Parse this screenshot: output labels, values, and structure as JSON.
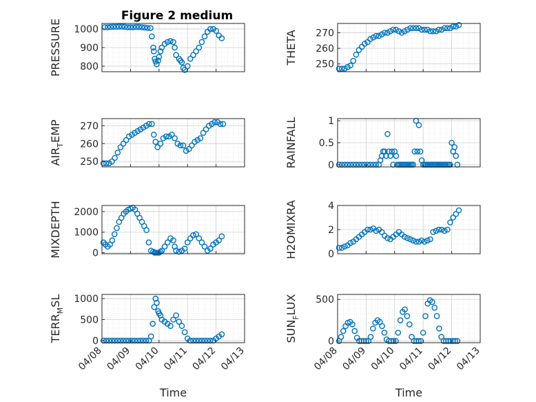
{
  "figure": {
    "title": "Figure 2 medium",
    "xlabel": "Time",
    "marker_color": "#0072BD",
    "xtick_labels": [
      "04/08",
      "04/09",
      "04/10",
      "04/11",
      "04/12",
      "04/13"
    ],
    "x_date_range": [
      "2023-04-08",
      "2023-04-13"
    ]
  },
  "chart_data": [
    {
      "type": "scatter",
      "ylabel_main": "PRESSURE",
      "ylabel_sub": "",
      "ylim": [
        770,
        1030
      ],
      "yticks": [
        800,
        900,
        1000
      ],
      "xlim_days": [
        0,
        5
      ],
      "grid": true,
      "x": [
        0.1,
        0.2,
        0.3,
        0.4,
        0.5,
        0.6,
        0.7,
        0.8,
        0.9,
        1.0,
        1.1,
        1.2,
        1.3,
        1.4,
        1.5,
        1.6,
        1.7,
        1.75,
        1.8,
        1.82,
        1.85,
        1.88,
        1.92,
        1.97,
        2.0,
        2.05,
        2.1,
        2.2,
        2.3,
        2.4,
        2.5,
        2.55,
        2.6,
        2.7,
        2.75,
        2.8,
        2.85,
        2.9,
        3.0,
        3.1,
        3.2,
        3.3,
        3.4,
        3.5,
        3.6,
        3.7,
        3.8,
        3.9,
        4.0,
        4.1,
        4.2
      ],
      "y": [
        1010,
        1010,
        1011,
        1012,
        1012,
        1013,
        1013,
        1012,
        1010,
        1010,
        1010,
        1011,
        1011,
        1010,
        1008,
        1006,
        1005,
        960,
        900,
        880,
        840,
        825,
        810,
        830,
        850,
        880,
        900,
        920,
        930,
        935,
        930,
        900,
        860,
        840,
        830,
        820,
        790,
        780,
        800,
        840,
        860,
        880,
        900,
        930,
        960,
        985,
        1000,
        1000,
        990,
        965,
        950
      ]
    },
    {
      "type": "scatter",
      "ylabel_main": "THETA",
      "ylabel_sub": "",
      "ylim": [
        245,
        276
      ],
      "yticks": [
        250,
        260,
        270
      ],
      "xlim_days": [
        0,
        5
      ],
      "grid": true,
      "x": [
        0.05,
        0.15,
        0.25,
        0.35,
        0.45,
        0.55,
        0.65,
        0.75,
        0.85,
        0.95,
        1.05,
        1.15,
        1.25,
        1.35,
        1.45,
        1.55,
        1.65,
        1.75,
        1.85,
        1.95,
        2.05,
        2.15,
        2.25,
        2.35,
        2.45,
        2.55,
        2.65,
        2.75,
        2.85,
        2.95,
        3.05,
        3.15,
        3.25,
        3.35,
        3.45,
        3.55,
        3.65,
        3.75,
        3.85,
        3.95,
        4.05,
        4.15,
        4.25
      ],
      "y": [
        247,
        247,
        247,
        248,
        249,
        252,
        256,
        259,
        261,
        263,
        264,
        266,
        267,
        268,
        268,
        269,
        270,
        270,
        271,
        272,
        272,
        271,
        270,
        271,
        272,
        273,
        273,
        273,
        273,
        272,
        272,
        272,
        271,
        271,
        271,
        272,
        272,
        273,
        273,
        273,
        274,
        274,
        275
      ]
    },
    {
      "type": "scatter",
      "ylabel_main": "AIR",
      "ylabel_sub": "T",
      "ylabel_rest": "EMP",
      "ylim": [
        247,
        274
      ],
      "yticks": [
        250,
        260,
        270
      ],
      "xlim_days": [
        0,
        5
      ],
      "grid": true,
      "x": [
        0.05,
        0.15,
        0.25,
        0.35,
        0.45,
        0.55,
        0.65,
        0.75,
        0.85,
        0.95,
        1.05,
        1.15,
        1.25,
        1.35,
        1.45,
        1.55,
        1.65,
        1.75,
        1.82,
        1.88,
        1.95,
        2.05,
        2.15,
        2.25,
        2.35,
        2.45,
        2.55,
        2.65,
        2.75,
        2.85,
        2.95,
        3.05,
        3.15,
        3.25,
        3.35,
        3.45,
        3.55,
        3.65,
        3.75,
        3.85,
        3.95,
        4.05,
        4.15,
        4.25
      ],
      "y": [
        249,
        249,
        249,
        250,
        252,
        255,
        258,
        260,
        262,
        264,
        265,
        266,
        267,
        268,
        269,
        270,
        271,
        271,
        265,
        261,
        258,
        260,
        263,
        264,
        264,
        265,
        263,
        260,
        259,
        259,
        256,
        257,
        259,
        261,
        262,
        263,
        266,
        268,
        270,
        271,
        272,
        272,
        271,
        271
      ]
    },
    {
      "type": "scatter",
      "ylabel_main": "RAINFALL",
      "ylabel_sub": "",
      "ylim": [
        -0.05,
        1.05
      ],
      "yticks": [
        0,
        0.5,
        1
      ],
      "xlim_days": [
        0,
        5
      ],
      "grid": true,
      "x": [
        0.05,
        0.15,
        0.25,
        0.35,
        0.45,
        0.55,
        0.65,
        0.75,
        0.85,
        0.95,
        1.05,
        1.15,
        1.25,
        1.35,
        1.45,
        1.5,
        1.55,
        1.6,
        1.65,
        1.7,
        1.75,
        1.8,
        1.85,
        1.9,
        1.95,
        2.0,
        2.05,
        2.1,
        2.15,
        2.2,
        2.25,
        2.3,
        2.35,
        2.4,
        2.45,
        2.5,
        2.55,
        2.6,
        2.65,
        2.7,
        2.75,
        2.8,
        2.85,
        2.9,
        2.95,
        3.0,
        3.05,
        3.1,
        3.15,
        3.2,
        3.25,
        3.3,
        3.35,
        3.4,
        3.45,
        3.5,
        3.55,
        3.6,
        3.65,
        3.7,
        3.75,
        3.8,
        3.85,
        3.9,
        3.95,
        4.0,
        4.05,
        4.1,
        4.15,
        4.2
      ],
      "y": [
        0,
        0,
        0,
        0,
        0,
        0,
        0,
        0,
        0,
        0,
        0,
        0,
        0,
        0,
        0,
        0.1,
        0.2,
        0.3,
        0.3,
        0.2,
        0.7,
        0.3,
        0.2,
        0.3,
        0,
        0.3,
        0.2,
        0,
        0,
        0,
        0,
        0,
        0,
        0,
        0,
        0,
        0,
        0,
        0,
        0.3,
        1.0,
        0.3,
        0.9,
        0.3,
        0.1,
        0,
        0,
        0,
        0,
        0,
        0,
        0,
        0,
        0,
        0,
        0,
        0,
        0,
        0,
        0,
        0,
        0,
        0,
        0,
        0,
        0.5,
        0.3,
        0.4,
        0.2,
        0
      ]
    },
    {
      "type": "scatter",
      "ylabel_main": "MIXDEPTH",
      "ylabel_sub": "",
      "ylim": [
        -50,
        2300
      ],
      "yticks": [
        0,
        1000,
        2000
      ],
      "xlim_days": [
        0,
        5
      ],
      "grid": true,
      "x": [
        0.05,
        0.12,
        0.2,
        0.28,
        0.36,
        0.44,
        0.52,
        0.6,
        0.68,
        0.76,
        0.84,
        0.92,
        1.0,
        1.08,
        1.16,
        1.24,
        1.32,
        1.4,
        1.48,
        1.56,
        1.64,
        1.72,
        1.8,
        1.85,
        1.9,
        1.95,
        2.0,
        2.05,
        2.1,
        2.2,
        2.3,
        2.4,
        2.5,
        2.55,
        2.6,
        2.7,
        2.8,
        2.9,
        3.0,
        3.1,
        3.2,
        3.3,
        3.4,
        3.5,
        3.6,
        3.7,
        3.8,
        3.9,
        4.0,
        4.1,
        4.2
      ],
      "y": [
        500,
        400,
        300,
        400,
        600,
        900,
        1200,
        1500,
        1700,
        1900,
        2000,
        2100,
        2150,
        2200,
        2100,
        1900,
        1700,
        1500,
        1300,
        1100,
        500,
        100,
        50,
        0,
        0,
        0,
        0,
        50,
        100,
        300,
        500,
        700,
        600,
        300,
        100,
        50,
        100,
        200,
        500,
        700,
        850,
        900,
        700,
        500,
        300,
        100,
        200,
        400,
        500,
        600,
        800
      ]
    },
    {
      "type": "scatter",
      "ylabel_main": "H2OMIXRA",
      "ylabel_sub": "",
      "ylim": [
        0,
        4
      ],
      "yticks": [
        0,
        2,
        4
      ],
      "xlim_days": [
        0,
        5
      ],
      "grid": true,
      "x": [
        0.05,
        0.15,
        0.25,
        0.35,
        0.45,
        0.55,
        0.65,
        0.75,
        0.85,
        0.95,
        1.05,
        1.15,
        1.25,
        1.35,
        1.45,
        1.55,
        1.65,
        1.75,
        1.85,
        1.95,
        2.05,
        2.15,
        2.25,
        2.35,
        2.45,
        2.55,
        2.65,
        2.75,
        2.85,
        2.95,
        3.05,
        3.15,
        3.25,
        3.35,
        3.45,
        3.55,
        3.65,
        3.75,
        3.85,
        3.95,
        4.05,
        4.15,
        4.25
      ],
      "y": [
        0.5,
        0.5,
        0.6,
        0.7,
        0.9,
        1.0,
        1.2,
        1.4,
        1.6,
        1.8,
        2.0,
        2.0,
        2.1,
        1.9,
        2.0,
        1.8,
        1.5,
        1.3,
        1.2,
        1.4,
        1.6,
        1.8,
        1.6,
        1.4,
        1.3,
        1.2,
        1.1,
        1.0,
        1.0,
        1.1,
        1.0,
        1.1,
        1.2,
        1.8,
        1.9,
        2.0,
        2.0,
        1.9,
        2.0,
        2.6,
        3.0,
        3.3,
        3.6
      ]
    },
    {
      "type": "scatter",
      "ylabel_main": "TERR",
      "ylabel_sub": "M",
      "ylabel_rest": "SL",
      "ylim": [
        -50,
        1100
      ],
      "yticks": [
        0,
        500,
        1000
      ],
      "xlim_days": [
        0,
        5
      ],
      "grid": true,
      "x": [
        0.05,
        0.15,
        0.25,
        0.35,
        0.45,
        0.55,
        0.65,
        0.75,
        0.85,
        0.95,
        1.05,
        1.15,
        1.25,
        1.35,
        1.45,
        1.55,
        1.65,
        1.72,
        1.78,
        1.83,
        1.88,
        1.92,
        1.97,
        2.0,
        2.05,
        2.1,
        2.2,
        2.3,
        2.4,
        2.5,
        2.6,
        2.7,
        2.8,
        2.9,
        3.0,
        3.1,
        3.2,
        3.3,
        3.4,
        3.5,
        3.6,
        3.7,
        3.8,
        3.9,
        4.0,
        4.1,
        4.2
      ],
      "y": [
        0,
        0,
        0,
        0,
        0,
        0,
        0,
        0,
        0,
        0,
        0,
        0,
        0,
        0,
        0,
        0,
        0,
        100,
        400,
        800,
        1000,
        900,
        700,
        650,
        600,
        500,
        450,
        400,
        350,
        500,
        600,
        450,
        350,
        200,
        50,
        0,
        0,
        0,
        0,
        0,
        0,
        0,
        0,
        0,
        50,
        100,
        150
      ]
    },
    {
      "type": "scatter",
      "ylabel_main": "SUN",
      "ylabel_sub": "F",
      "ylabel_rest": "LUX",
      "ylim": [
        -20,
        560
      ],
      "yticks": [
        0,
        500
      ],
      "xlim_days": [
        0,
        5
      ],
      "grid": true,
      "x": [
        0.05,
        0.12,
        0.2,
        0.28,
        0.36,
        0.44,
        0.52,
        0.6,
        0.68,
        0.76,
        0.84,
        0.92,
        1.0,
        1.08,
        1.16,
        1.24,
        1.32,
        1.4,
        1.48,
        1.56,
        1.64,
        1.72,
        1.8,
        1.88,
        1.96,
        2.04,
        2.12,
        2.2,
        2.28,
        2.36,
        2.44,
        2.52,
        2.6,
        2.68,
        2.76,
        2.84,
        2.92,
        3.0,
        3.08,
        3.16,
        3.24,
        3.32,
        3.4,
        3.48,
        3.56,
        3.64,
        3.72,
        3.8,
        3.88,
        3.96,
        4.04,
        4.12,
        4.2
      ],
      "y": [
        0,
        50,
        120,
        180,
        220,
        230,
        200,
        120,
        40,
        0,
        0,
        0,
        0,
        0,
        50,
        150,
        220,
        250,
        230,
        180,
        100,
        20,
        0,
        0,
        0,
        0,
        100,
        250,
        350,
        380,
        300,
        200,
        50,
        0,
        0,
        0,
        0,
        100,
        300,
        450,
        490,
        470,
        400,
        300,
        150,
        50,
        0,
        0,
        0,
        0,
        0,
        0,
        0
      ]
    }
  ]
}
